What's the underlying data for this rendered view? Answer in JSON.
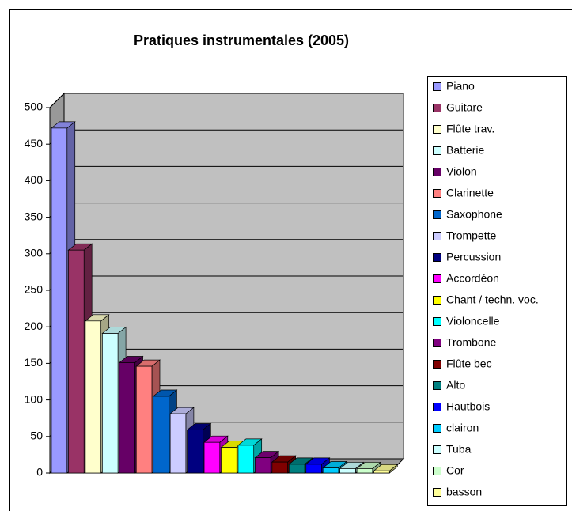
{
  "chart_data": {
    "type": "bar3d",
    "title": "Pratiques instrumentales (2005)",
    "ylim": [
      0,
      500
    ],
    "yticks": [
      0,
      50,
      100,
      150,
      200,
      250,
      300,
      350,
      400,
      450,
      500
    ],
    "grid": true,
    "legend": "right",
    "series": [
      {
        "name": "Piano",
        "color": "#9999ff",
        "values": [
          472
        ]
      },
      {
        "name": "Guitare",
        "color": "#993366",
        "values": [
          305
        ]
      },
      {
        "name": "Flûte trav.",
        "color": "#ffffcc",
        "values": [
          208
        ]
      },
      {
        "name": "Batterie",
        "color": "#ccffff",
        "values": [
          191
        ]
      },
      {
        "name": "Violon",
        "color": "#660066",
        "values": [
          151
        ]
      },
      {
        "name": "Clarinette",
        "color": "#ff8080",
        "values": [
          146
        ]
      },
      {
        "name": "Saxophone",
        "color": "#0066cc",
        "values": [
          105
        ]
      },
      {
        "name": "Trompette",
        "color": "#ccccff",
        "values": [
          81
        ]
      },
      {
        "name": "Percussion",
        "color": "#000080",
        "values": [
          59
        ]
      },
      {
        "name": "Accordéon",
        "color": "#ff00ff",
        "values": [
          42
        ]
      },
      {
        "name": "Chant / techn. voc.",
        "color": "#ffff00",
        "values": [
          35
        ]
      },
      {
        "name": "Violoncelle",
        "color": "#00ffff",
        "values": [
          38
        ]
      },
      {
        "name": "Trombone",
        "color": "#800080",
        "values": [
          21
        ]
      },
      {
        "name": "Flûte bec",
        "color": "#800000",
        "values": [
          15
        ]
      },
      {
        "name": "Alto",
        "color": "#008080",
        "values": [
          12
        ]
      },
      {
        "name": "Hautbois",
        "color": "#0000ff",
        "values": [
          12
        ]
      },
      {
        "name": "clairon",
        "color": "#00ccff",
        "values": [
          7
        ]
      },
      {
        "name": "Tuba",
        "color": "#ccffff",
        "values": [
          6
        ]
      },
      {
        "name": "Cor",
        "color": "#ccffcc",
        "values": [
          6
        ]
      },
      {
        "name": "basson",
        "color": "#ffff99",
        "values": [
          3
        ]
      }
    ]
  }
}
